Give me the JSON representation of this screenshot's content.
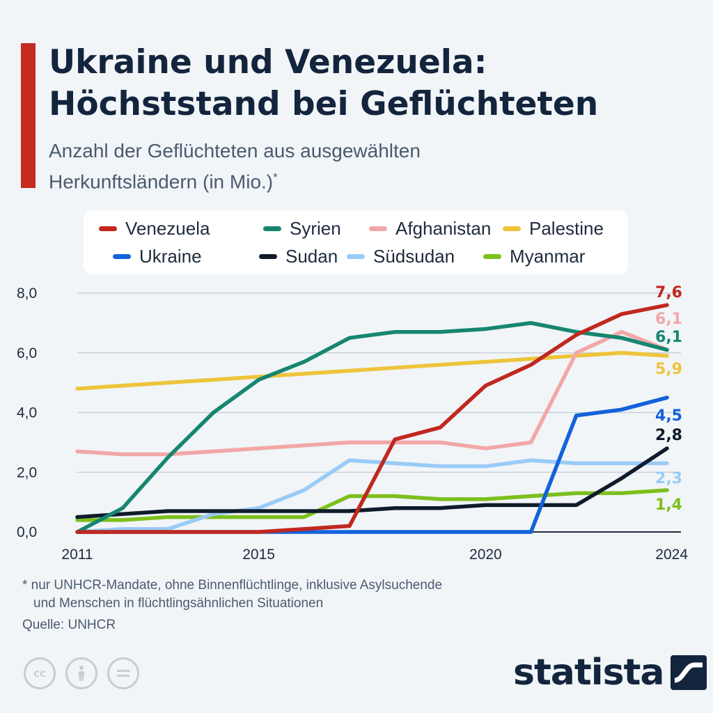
{
  "header": {
    "title_line1": "Ukraine und Venezuela:",
    "title_line2": "Höchststand bei Geflüchteten",
    "subtitle_line1": "Anzahl der Geflüchteten aus ausgewählten",
    "subtitle_line2": "Herkunftsländern (in Mio.)",
    "subtitle_mark": "*"
  },
  "footer": {
    "footnote_line1": "* nur UNHCR-Mandate, ohne Binnenflüchtlinge, inklusive Asylsuchende",
    "footnote_line2": "und Menschen in flüchtlingsähnlichen Situationen",
    "source": "Quelle: UNHCR",
    "brand": "statista",
    "license_icons": [
      "cc-icon",
      "person-icon",
      "equals-icon"
    ]
  },
  "chart_data": {
    "type": "line",
    "x": [
      2011,
      2012,
      2013,
      2014,
      2015,
      2016,
      2017,
      2018,
      2019,
      2020,
      2021,
      2022,
      2023,
      2024
    ],
    "xticks": [
      "2011",
      "2015",
      "2020",
      "2024"
    ],
    "yticks": [
      "0,0",
      "2,0",
      "4,0",
      "6,0",
      "8,0"
    ],
    "ylim": [
      0,
      8
    ],
    "grid": true,
    "legend_position": "top",
    "series": [
      {
        "name": "Venezuela",
        "color": "#c0281f",
        "end_label": "7,6",
        "values": [
          0.0,
          0.0,
          0.0,
          0.0,
          0.0,
          0.1,
          0.2,
          3.1,
          3.5,
          4.9,
          5.6,
          6.6,
          7.3,
          7.6
        ]
      },
      {
        "name": "Syrien",
        "color": "#168670",
        "end_label": "6,1",
        "values": [
          0.0,
          0.8,
          2.5,
          4.0,
          5.1,
          5.7,
          6.5,
          6.7,
          6.7,
          6.8,
          7.0,
          6.7,
          6.5,
          6.1
        ]
      },
      {
        "name": "Afghanistan",
        "color": "#f2a7a7",
        "end_label": "6,1",
        "values": [
          2.7,
          2.6,
          2.6,
          2.7,
          2.8,
          2.9,
          3.0,
          3.0,
          3.0,
          2.8,
          3.0,
          6.0,
          6.7,
          6.1
        ]
      },
      {
        "name": "Palestine",
        "color": "#eec43a",
        "end_label": "5,9",
        "values": [
          4.8,
          4.9,
          5.0,
          5.1,
          5.2,
          5.3,
          5.4,
          5.5,
          5.6,
          5.7,
          5.8,
          5.9,
          6.0,
          5.9
        ]
      },
      {
        "name": "Ukraine",
        "color": "#1262db",
        "end_label": "4,5",
        "values": [
          0.0,
          0.0,
          0.0,
          0.0,
          0.0,
          0.0,
          0.0,
          0.0,
          0.0,
          0.0,
          0.0,
          3.9,
          4.1,
          4.5
        ]
      },
      {
        "name": "Sudan",
        "color": "#0f1b2b",
        "end_label": "2,8",
        "values": [
          0.5,
          0.6,
          0.7,
          0.7,
          0.7,
          0.7,
          0.7,
          0.8,
          0.8,
          0.9,
          0.9,
          0.9,
          1.8,
          2.8
        ]
      },
      {
        "name": "Südsudan",
        "color": "#9acbf6",
        "end_label": "2,3",
        "values": [
          0.0,
          0.1,
          0.1,
          0.6,
          0.8,
          1.4,
          2.4,
          2.3,
          2.2,
          2.2,
          2.4,
          2.3,
          2.3,
          2.3
        ]
      },
      {
        "name": "Myanmar",
        "color": "#7dbf1d",
        "end_label": "1,4",
        "values": [
          0.4,
          0.4,
          0.5,
          0.5,
          0.5,
          0.5,
          1.2,
          1.2,
          1.1,
          1.1,
          1.2,
          1.3,
          1.3,
          1.4
        ]
      }
    ]
  }
}
